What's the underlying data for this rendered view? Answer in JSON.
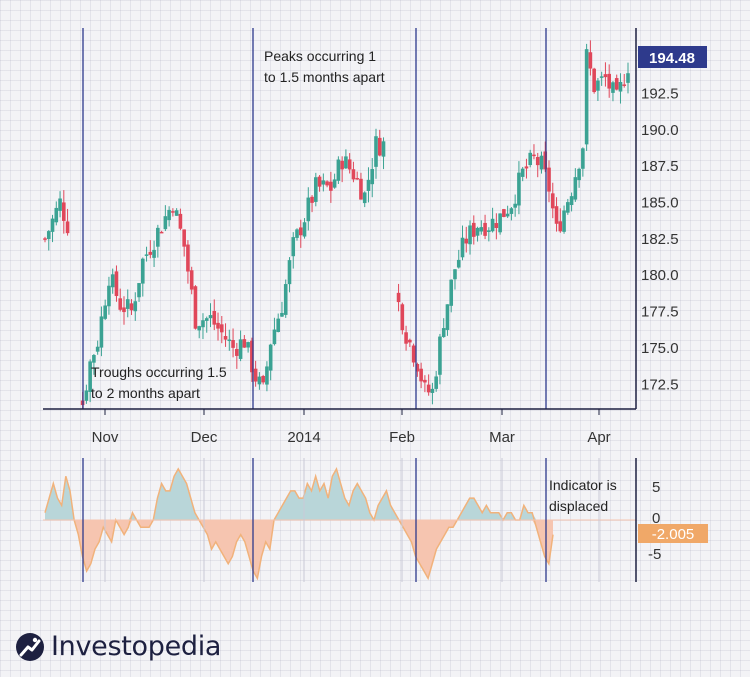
{
  "brand": {
    "name": "Investopedia"
  },
  "colors": {
    "up": "#3ba293",
    "down": "#e0475a",
    "divider": "#2e3a8c",
    "price_label_bg": "#2e3a8c",
    "indicator_label_bg": "#f0a868",
    "osc_pos_fill": "#b9d6d9",
    "osc_neg_fill": "#f6c5b0",
    "osc_line": "#f1b27b",
    "axis": "#1d2040"
  },
  "chart_data": [
    {
      "type": "candlestick",
      "x_ticks": [
        "Nov",
        "Dec",
        "2014",
        "Feb",
        "Mar",
        "Apr"
      ],
      "y_ticks": [
        172.5,
        175.0,
        177.5,
        180.0,
        182.5,
        185.0,
        187.5,
        190.0,
        192.5
      ],
      "ylim": [
        170.8,
        197.0
      ],
      "last_price_label": "194.48",
      "annotations": [
        {
          "text_lines": [
            "Peaks occurring 1",
            "to 1.5 months apart"
          ]
        },
        {
          "text_lines": [
            "Troughs occurring 1.5",
            "to 2 months apart"
          ]
        }
      ],
      "path_keypoints": [
        [
          0,
          182.5
        ],
        [
          4,
          185
        ],
        [
          6,
          183.5
        ],
        [
          7,
          172.5
        ],
        [
          8,
          171.5
        ],
        [
          10,
          171.2
        ],
        [
          12,
          174
        ],
        [
          14,
          175.5
        ],
        [
          17,
          180
        ],
        [
          20,
          178
        ],
        [
          23,
          177.5
        ],
        [
          26,
          181
        ],
        [
          30,
          183
        ],
        [
          34,
          185
        ],
        [
          37,
          182
        ],
        [
          40,
          177
        ],
        [
          44,
          177
        ],
        [
          47,
          176
        ],
        [
          50,
          175
        ],
        [
          53,
          175.5
        ],
        [
          56,
          173
        ],
        [
          58,
          172
        ],
        [
          60,
          175.5
        ],
        [
          63,
          178
        ],
        [
          66,
          182
        ],
        [
          69,
          184
        ],
        [
          72,
          186
        ],
        [
          76,
          186
        ],
        [
          79,
          188
        ],
        [
          82,
          187
        ],
        [
          85,
          185.5
        ],
        [
          88,
          189
        ],
        [
          90,
          189
        ],
        [
          91,
          181
        ],
        [
          93,
          179
        ],
        [
          96,
          176
        ],
        [
          99,
          174
        ],
        [
          101,
          172
        ],
        [
          103,
          172
        ],
        [
          106,
          177
        ],
        [
          109,
          180.5
        ],
        [
          112,
          182.5
        ],
        [
          115,
          183.5
        ],
        [
          118,
          183.5
        ],
        [
          121,
          184
        ],
        [
          124,
          185
        ],
        [
          127,
          187
        ],
        [
          130,
          188
        ],
        [
          132,
          187.5
        ],
        [
          134,
          186
        ],
        [
          136,
          183
        ],
        [
          138,
          184.5
        ],
        [
          140,
          186
        ],
        [
          142,
          188
        ],
        [
          143,
          189
        ],
        [
          144,
          195
        ],
        [
          146,
          193
        ],
        [
          149,
          193.5
        ],
        [
          152,
          192
        ],
        [
          155,
          194.5
        ]
      ]
    },
    {
      "type": "area",
      "y_ticks": [
        5,
        0,
        -5
      ],
      "ylim": [
        -8.5,
        8.5
      ],
      "last_value_label": "-2.005",
      "annotations": [
        {
          "text_lines": [
            "Indicator is",
            "displaced"
          ]
        }
      ],
      "series": [
        {
          "values": [
            1,
            3,
            5,
            3,
            2,
            6,
            4,
            0,
            -2,
            -5,
            -7,
            -6,
            -4,
            -3,
            -1,
            -2,
            -3,
            0,
            -1,
            -2,
            -1,
            1,
            0,
            -1,
            -1,
            -1,
            0,
            3,
            5,
            4,
            4,
            6,
            7,
            6,
            5,
            3,
            1,
            0,
            -1,
            -2,
            -4,
            -3,
            -4,
            -5,
            -6,
            -5,
            -3,
            -2,
            -3,
            -5,
            -7,
            -8,
            -5,
            -3,
            -4,
            0,
            1,
            2,
            3,
            4,
            4,
            3,
            3,
            5,
            4,
            6,
            4,
            5,
            3,
            6,
            7,
            5,
            3,
            2,
            4,
            5,
            4,
            3,
            1,
            0,
            2,
            3,
            4,
            2,
            1,
            0,
            -1,
            -2,
            -3,
            -5,
            -6,
            -7,
            -8,
            -6,
            -4,
            -3,
            -2,
            -1,
            -1,
            0,
            1,
            2,
            3,
            3,
            2,
            1,
            2,
            1,
            1,
            1,
            0,
            1,
            1,
            0,
            0,
            2,
            1,
            1,
            -1,
            -3,
            -5,
            -6,
            -2.005
          ]
        }
      ]
    }
  ]
}
